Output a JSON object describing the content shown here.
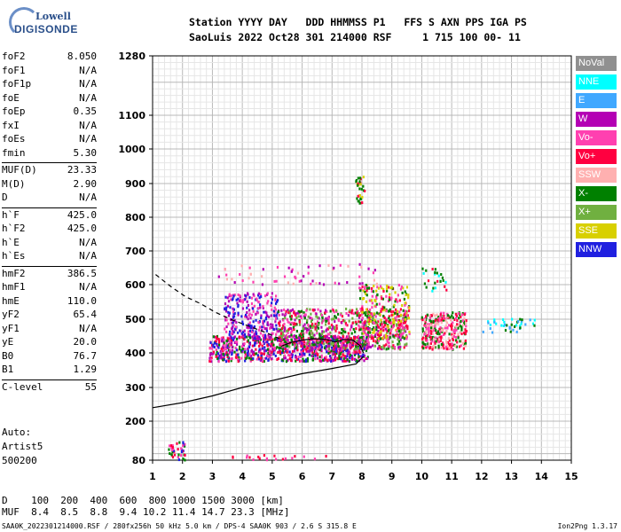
{
  "logo": {
    "top": "Lowell",
    "bottom": "DIGISONDE"
  },
  "header": {
    "line1": "Station YYYY DAY   DDD HHMMSS P1   FFS S AXN PPS IGA PS",
    "line2": "SaoLuis 2022 Oct28 301 214000 RSF     1 715 100 00- 11"
  },
  "params": [
    [
      {
        "n": "foF2",
        "v": "8.050"
      },
      {
        "n": "foF1",
        "v": "N/A"
      },
      {
        "n": "foF1p",
        "v": "N/A"
      },
      {
        "n": "foE",
        "v": "N/A"
      },
      {
        "n": "foEp",
        "v": "0.35"
      },
      {
        "n": "fxI",
        "v": "N/A"
      },
      {
        "n": "foEs",
        "v": "N/A"
      },
      {
        "n": "fmin",
        "v": "5.30"
      }
    ],
    [
      {
        "n": "MUF(D)",
        "v": "23.33"
      },
      {
        "n": "M(D)",
        "v": "2.90"
      },
      {
        "n": "D",
        "v": "N/A"
      }
    ],
    [
      {
        "n": "h`F",
        "v": "425.0"
      },
      {
        "n": "h`F2",
        "v": "425.0"
      },
      {
        "n": "h`E",
        "v": "N/A"
      },
      {
        "n": "h`Es",
        "v": "N/A"
      }
    ],
    [
      {
        "n": "hmF2",
        "v": "386.5"
      },
      {
        "n": "hmF1",
        "v": "N/A"
      },
      {
        "n": "hmE",
        "v": "110.0"
      },
      {
        "n": "yF2",
        "v": "65.4"
      },
      {
        "n": "yF1",
        "v": "N/A"
      },
      {
        "n": "yE",
        "v": "20.0"
      },
      {
        "n": "B0",
        "v": "76.7"
      },
      {
        "n": "B1",
        "v": "1.29"
      }
    ],
    [
      {
        "n": "C-level",
        "v": "55"
      }
    ]
  ],
  "auto": {
    "line1": "Auto:",
    "line2": "Artist5",
    "line3": "500200"
  },
  "dmuf": {
    "d_line": "D    100  200  400  600  800 1000 1500 3000 [km]",
    "muf_line": "MUF  8.4  8.5  8.8  9.4 10.2 11.4 14.7 23.3 [MHz]"
  },
  "footer": {
    "left": "SAA0K_2022301214000.RSF / 280fx256h 50 kHz 5.0 km / DPS-4 SAA0K 903 / 2.6 S 315.8 E",
    "right": "Ion2Png 1.3.17"
  },
  "legend": [
    {
      "label": "NoVal",
      "color": "#909090"
    },
    {
      "label": "NNE",
      "color": "#00ffff"
    },
    {
      "label": "E",
      "color": "#40a8ff"
    },
    {
      "label": "W",
      "color": "#b400b4"
    },
    {
      "label": "Vo-",
      "color": "#ff40b0"
    },
    {
      "label": "Vo+",
      "color": "#ff0040"
    },
    {
      "label": "SSW",
      "color": "#ffb0b0"
    },
    {
      "label": "X-",
      "color": "#008000"
    },
    {
      "label": "X+",
      "color": "#70b040"
    },
    {
      "label": "SSE",
      "color": "#d8d000"
    },
    {
      "label": "NNW",
      "color": "#2020e0"
    }
  ],
  "chart_data": {
    "type": "scatter",
    "title": "",
    "xlabel": "",
    "ylabel": "",
    "xlim": [
      1,
      15
    ],
    "ylim": [
      80,
      1280
    ],
    "x_ticks": [
      1,
      2,
      3,
      4,
      5,
      6,
      7,
      8,
      9,
      10,
      11,
      12,
      13,
      14,
      15
    ],
    "y_ticks": [
      80,
      200,
      300,
      400,
      500,
      600,
      700,
      800,
      900,
      1000,
      1100,
      1280
    ],
    "grid": true,
    "y_scale": "nonlinear",
    "curves": [
      {
        "name": "virtual height trace",
        "style": "solid",
        "x": [
          5.3,
          5.6,
          6.0,
          6.4,
          6.8,
          7.1,
          7.4,
          7.7,
          7.95,
          8.05
        ],
        "y": [
          420,
          430,
          438,
          442,
          440,
          432,
          440,
          438,
          420,
          400
        ]
      },
      {
        "name": "profile",
        "style": "solid",
        "x": [
          1.0,
          2.0,
          3.0,
          4.0,
          5.0,
          6.0,
          7.0,
          7.8,
          8.05
        ],
        "y": [
          240,
          255,
          275,
          300,
          320,
          340,
          355,
          368,
          390
        ]
      },
      {
        "name": "topside extrapolation",
        "style": "dashed",
        "x": [
          1.1,
          1.6,
          2.1,
          2.6,
          3.1,
          3.6,
          4.2,
          4.8,
          5.3
        ],
        "y": [
          630,
          595,
          565,
          545,
          520,
          500,
          480,
          460,
          440
        ]
      }
    ],
    "clusters": [
      {
        "x0": 2.9,
        "x1": 8.2,
        "y0": 375,
        "y1": 450,
        "n": 900,
        "colors": [
          "#ff0040",
          "#ff40b0",
          "#b400b4",
          "#008000",
          "#2020e0"
        ]
      },
      {
        "x0": 3.4,
        "x1": 5.2,
        "y0": 440,
        "y1": 575,
        "n": 260,
        "colors": [
          "#b400b4",
          "#ff40b0",
          "#2020e0"
        ]
      },
      {
        "x0": 5.2,
        "x1": 9.5,
        "y0": 410,
        "y1": 530,
        "n": 700,
        "colors": [
          "#ff40b0",
          "#ff0040",
          "#b400b4",
          "#008000",
          "#70b040"
        ]
      },
      {
        "x0": 7.9,
        "x1": 9.6,
        "y0": 440,
        "y1": 600,
        "n": 260,
        "colors": [
          "#ff40b0",
          "#ff0040",
          "#008000",
          "#d8d000"
        ]
      },
      {
        "x0": 10.0,
        "x1": 11.5,
        "y0": 410,
        "y1": 520,
        "n": 320,
        "colors": [
          "#ff40b0",
          "#ff0040",
          "#008000",
          "#ffb0b0"
        ]
      },
      {
        "x0": 10.0,
        "x1": 11.0,
        "y0": 580,
        "y1": 650,
        "n": 25,
        "colors": [
          "#ff0040",
          "#008000",
          "#00ffff"
        ]
      },
      {
        "x0": 12.0,
        "x1": 13.8,
        "y0": 460,
        "y1": 500,
        "n": 40,
        "colors": [
          "#008000",
          "#00ffff",
          "#40a8ff"
        ]
      },
      {
        "x0": 7.8,
        "x1": 8.1,
        "y0": 840,
        "y1": 920,
        "n": 30,
        "colors": [
          "#d8d000",
          "#ff0040",
          "#008000"
        ]
      },
      {
        "x0": 1.5,
        "x1": 2.1,
        "y0": 80,
        "y1": 135,
        "n": 40,
        "colors": [
          "#ff0040",
          "#008000",
          "#2020e0",
          "#ff40b0"
        ]
      },
      {
        "x0": 3.5,
        "x1": 6.8,
        "y0": 80,
        "y1": 95,
        "n": 20,
        "colors": [
          "#ff40b0",
          "#ff0040"
        ]
      },
      {
        "x0": 3.2,
        "x1": 8.5,
        "y0": 600,
        "y1": 660,
        "n": 60,
        "colors": [
          "#ff40b0",
          "#b400b4",
          "#ffb0b0"
        ]
      }
    ]
  }
}
